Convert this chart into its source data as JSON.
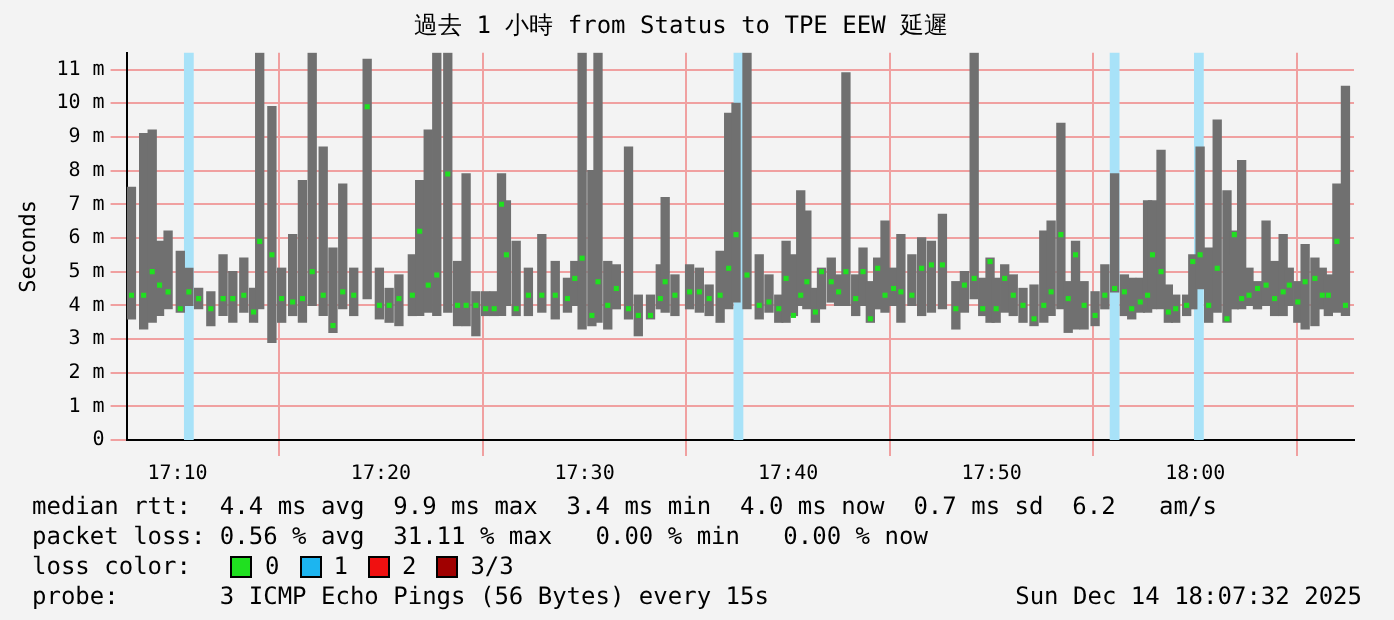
{
  "chart_data": {
    "type": "bar",
    "title": "過去 1 小時 from Status to TPE EEW 延遲",
    "ylabel": "Seconds",
    "legend_title": "loss color:",
    "legend": "bottom",
    "grid": true,
    "xlim": [
      17.125,
      18.13
    ],
    "xticks": [
      {
        "value": 17.1667,
        "label": "17:10"
      },
      {
        "value": 17.3333,
        "label": "17:20"
      },
      {
        "value": 17.5,
        "label": "17:30"
      },
      {
        "value": 17.6667,
        "label": "17:40"
      },
      {
        "value": 17.8333,
        "label": "17:50"
      },
      {
        "value": 18,
        "label": "18:00"
      }
    ],
    "ylim": [
      0,
      11.5
    ],
    "yticks": [
      0,
      {
        "value": 1,
        "label": "1 m"
      },
      {
        "value": 2,
        "label": "2 m"
      },
      {
        "value": 3,
        "label": "3 m"
      },
      {
        "value": 4,
        "label": "4 m"
      },
      {
        "value": 5,
        "label": "5 m"
      },
      {
        "value": 6,
        "label": "6 m"
      },
      {
        "value": 7,
        "label": "7 m"
      },
      {
        "value": 8,
        "label": "8 m"
      },
      {
        "value": 9,
        "label": "9 m"
      },
      {
        "value": 10,
        "label": "10 m"
      },
      {
        "value": 11,
        "label": "11 m"
      }
    ],
    "x": [
      17.129,
      17.139,
      17.146,
      17.152,
      17.159,
      17.169,
      17.176,
      17.184,
      17.194,
      17.204,
      17.212,
      17.221,
      17.229,
      17.234,
      17.244,
      17.252,
      17.261,
      17.269,
      17.277,
      17.286,
      17.294,
      17.302,
      17.311,
      17.322,
      17.332,
      17.34,
      17.348,
      17.359,
      17.365,
      17.372,
      17.379,
      17.388,
      17.396,
      17.403,
      17.411,
      17.419,
      17.426,
      17.432,
      17.436,
      17.444,
      17.454,
      17.465,
      17.476,
      17.486,
      17.492,
      17.498,
      17.506,
      17.511,
      17.519,
      17.526,
      17.536,
      17.544,
      17.554,
      17.562,
      17.566,
      17.574,
      17.586,
      17.594,
      17.602,
      17.611,
      17.618,
      17.624,
      17.633,
      17.643,
      17.651,
      17.659,
      17.665,
      17.671,
      17.677,
      17.682,
      17.689,
      17.694,
      17.702,
      17.708,
      17.714,
      17.722,
      17.728,
      17.734,
      17.74,
      17.746,
      17.753,
      17.759,
      17.768,
      17.776,
      17.784,
      17.793,
      17.804,
      17.811,
      17.819,
      17.826,
      17.832,
      17.837,
      17.844,
      17.851,
      17.859,
      17.868,
      17.876,
      17.882,
      17.89,
      17.896,
      17.902,
      17.909,
      17.918,
      17.926,
      17.934,
      17.942,
      17.948,
      17.955,
      17.961,
      17.965,
      17.972,
      17.978,
      17.984,
      17.993,
      17.998,
      18.004,
      18.011,
      18.018,
      18.026,
      18.032,
      18.038,
      18.044,
      18.051,
      18.058,
      18.065,
      18.072,
      18.077,
      18.084,
      18.09,
      18.098,
      18.104,
      18.109,
      18.116,
      18.123
    ],
    "series": [
      {
        "color": "#707070",
        "base": [
          3.6,
          3.3,
          3.5,
          3.7,
          3.9,
          3.8,
          4.0,
          3.9,
          3.4,
          3.7,
          3.5,
          3.8,
          3.5,
          3.9,
          2.9,
          3.5,
          3.7,
          3.5,
          4.0,
          3.7,
          3.2,
          3.9,
          3.7,
          4.2,
          3.6,
          3.5,
          3.4,
          3.7,
          3.7,
          3.8,
          3.7,
          3.8,
          3.4,
          3.4,
          3.1,
          3.7,
          3.7,
          3.7,
          4.0,
          3.7,
          3.7,
          3.8,
          3.6,
          3.8,
          4.0,
          3.3,
          3.4,
          3.5,
          3.3,
          3.9,
          3.6,
          3.1,
          3.6,
          3.9,
          3.8,
          3.7,
          3.9,
          3.8,
          3.7,
          3.5,
          3.9,
          4.1,
          3.9,
          3.6,
          3.8,
          3.5,
          3.5,
          3.7,
          4.0,
          3.9,
          3.5,
          3.9,
          4.1,
          4.0,
          4.0,
          3.7,
          4.0,
          3.5,
          3.9,
          3.8,
          4.0,
          3.5,
          4.0,
          3.7,
          3.8,
          3.9,
          3.3,
          3.8,
          4.2,
          3.7,
          3.5,
          3.5,
          3.8,
          3.7,
          3.5,
          3.4,
          3.5,
          3.7,
          3.9,
          3.2,
          3.3,
          3.3,
          3.4,
          3.9,
          4.4,
          3.7,
          3.6,
          3.8,
          3.8,
          3.9,
          3.9,
          3.5,
          3.5,
          3.7,
          3.9,
          4.5,
          3.5,
          3.8,
          3.5,
          3.9,
          3.9,
          4.0,
          3.9,
          4.0,
          3.7,
          3.7,
          4.0,
          3.5,
          3.3,
          3.4,
          3.9,
          3.7,
          3.8,
          3.7
        ],
        "values": [
          3.9,
          5.8,
          5.7,
          2.2,
          2.3,
          1.8,
          1.1,
          0.6,
          1.0,
          1.8,
          1.5,
          1.6,
          1.0,
          7.6,
          7.0,
          1.6,
          2.4,
          4.2,
          7.5,
          5.0,
          2.5,
          3.7,
          1.4,
          7.1,
          1.5,
          1.0,
          1.5,
          1.8,
          4.0,
          5.4,
          7.8,
          7.7,
          1.9,
          4.5,
          1.3,
          0.7,
          0.7,
          4.2,
          3.1,
          2.2,
          1.4,
          2.3,
          1.7,
          1.0,
          1.3,
          8.2,
          4.6,
          8.0,
          2.0,
          1.3,
          5.1,
          1.2,
          0.7,
          1.3,
          3.4,
          1.2,
          1.3,
          1.3,
          0.9,
          2.1,
          5.8,
          5.9,
          7.6,
          1.9,
          1.1,
          0.8,
          2.4,
          1.8,
          3.4,
          2.9,
          1.0,
          1.2,
          1.3,
          0.9,
          6.9,
          1.2,
          1.7,
          1.2,
          1.5,
          2.7,
          1.1,
          2.6,
          1.5,
          2.3,
          2.1,
          2.8,
          1.4,
          1.2,
          7.3,
          1.1,
          1.9,
          1.3,
          1.4,
          1.2,
          1.0,
          1.2,
          2.7,
          2.8,
          5.5,
          1.5,
          2.6,
          1.4,
          1.0,
          1.3,
          3.5,
          1.2,
          1.2,
          1.0,
          3.3,
          3.2,
          4.7,
          1.1,
          0.8,
          0.6,
          1.6,
          4.2,
          2.2,
          5.7,
          3.9,
          2.3,
          4.4,
          1.1,
          0.8,
          2.5,
          1.6,
          2.4,
          1.1,
          1.2,
          2.5,
          2.0,
          1.2,
          1.2,
          3.8,
          6.8
        ]
      },
      {
        "type": "scatter",
        "name": "0",
        "color": "#20e020",
        "marker": "square",
        "values": [
          4.3,
          4.3,
          5.0,
          4.6,
          4.4,
          3.9,
          4.4,
          4.2,
          3.9,
          4.2,
          4.2,
          4.3,
          3.8,
          5.9,
          5.5,
          4.2,
          4.1,
          4.2,
          5.0,
          4.3,
          3.4,
          4.4,
          4.3,
          9.9,
          4.0,
          4.0,
          4.2,
          4.3,
          6.2,
          4.6,
          4.9,
          7.9,
          4.0,
          4.0,
          4.0,
          3.9,
          3.9,
          7.0,
          5.5,
          3.9,
          4.3,
          4.3,
          4.3,
          4.2,
          4.8,
          5.4,
          3.7,
          4.7,
          4.0,
          4.5,
          3.9,
          3.7,
          3.7,
          4.2,
          4.7,
          4.3,
          4.4,
          4.4,
          4.2,
          4.3,
          5.1,
          6.1,
          4.9,
          4.0,
          4.1,
          3.9,
          4.8,
          3.7,
          4.3,
          4.7,
          3.8,
          5.0,
          4.7,
          4.4,
          5.0,
          4.2,
          5.0,
          3.6,
          5.1,
          4.3,
          4.5,
          4.4,
          4.3,
          5.1,
          5.2,
          5.2,
          3.9,
          4.6,
          4.8,
          3.9,
          5.3,
          3.9,
          4.8,
          4.3,
          4.0,
          3.6,
          4.0,
          4.4,
          6.1,
          4.2,
          5.5,
          4.0,
          3.7,
          4.3,
          4.5,
          4.4,
          3.9,
          4.1,
          4.3,
          5.5,
          5.0,
          3.8,
          3.9,
          4.0,
          5.3,
          5.5,
          4.0,
          5.1,
          3.6,
          6.1,
          4.2,
          4.3,
          4.5,
          4.6,
          4.2,
          4.4,
          4.6,
          4.1,
          4.7,
          4.8,
          4.3,
          4.3,
          5.9,
          4.0
        ]
      },
      {
        "type": "scatter",
        "name": "1",
        "color": "#1cb5f0",
        "marker": "square",
        "values": [
          null,
          null,
          null,
          null,
          null,
          null,
          null,
          null,
          null,
          null,
          null,
          null,
          null,
          null,
          null,
          null,
          null,
          null,
          null,
          null,
          null,
          null,
          null,
          null,
          null,
          null,
          null,
          null,
          null,
          null,
          null,
          null,
          null,
          null,
          null,
          null,
          null,
          null,
          null,
          null,
          null,
          null,
          null,
          null,
          null,
          null,
          null,
          null,
          null,
          null,
          null,
          null,
          null,
          null,
          null,
          null,
          null,
          null,
          null,
          null,
          null,
          null,
          null,
          null,
          null,
          null,
          null,
          null,
          null,
          null,
          null,
          null,
          null,
          null,
          null,
          null,
          null,
          null,
          null,
          null,
          null,
          null,
          null,
          null,
          null,
          null,
          null,
          null,
          null,
          null,
          null,
          null,
          null,
          null,
          null,
          null,
          null,
          null,
          null,
          null,
          null,
          null,
          null,
          null,
          null,
          null,
          null,
          null,
          null,
          null,
          null,
          null,
          null,
          null,
          null,
          null,
          null,
          null,
          null,
          null,
          null,
          null,
          null,
          null,
          null,
          null,
          null,
          null,
          null,
          null,
          null,
          null,
          null,
          null
        ]
      },
      {
        "type": "scatter",
        "name": "2",
        "color": "#f01010",
        "marker": "square",
        "values": [
          null,
          null,
          null,
          null,
          null,
          null,
          null,
          null,
          null,
          null,
          null,
          null,
          null,
          null,
          null,
          null,
          null,
          null,
          null,
          null,
          null,
          null,
          null,
          null,
          null,
          null,
          null,
          null,
          null,
          null,
          null,
          null,
          null,
          null,
          null,
          null,
          null,
          null,
          null,
          null,
          null,
          null,
          null,
          null,
          null,
          null,
          null,
          null,
          null,
          null,
          null,
          null,
          null,
          null,
          null,
          null,
          null,
          null,
          null,
          null,
          null,
          null,
          null,
          null,
          null,
          null,
          null,
          null,
          null,
          null,
          null,
          null,
          null,
          null,
          null,
          null,
          null,
          null,
          null,
          null,
          null,
          null,
          null,
          null,
          null,
          null,
          null,
          null,
          null,
          null,
          null,
          null,
          null,
          null,
          null,
          null,
          null,
          null,
          null,
          null,
          null,
          null,
          null,
          null,
          null,
          null,
          null,
          null,
          null,
          null,
          null,
          null,
          null,
          null,
          null,
          null,
          null,
          null,
          null,
          null,
          null,
          null,
          null,
          null,
          null,
          null,
          null,
          null,
          null,
          null,
          null,
          null,
          null,
          null
        ]
      },
      {
        "type": "scatter",
        "name": "3/3",
        "color": "#a00000",
        "marker": "square",
        "values": [
          null,
          null,
          null,
          null,
          null,
          null,
          null,
          null,
          null,
          null,
          null,
          null,
          null,
          null,
          null,
          null,
          null,
          null,
          null,
          null,
          null,
          null,
          null,
          null,
          null,
          null,
          null,
          null,
          null,
          null,
          null,
          null,
          null,
          null,
          null,
          null,
          null,
          null,
          null,
          null,
          null,
          null,
          null,
          null,
          null,
          null,
          null,
          null,
          null,
          null,
          null,
          null,
          null,
          null,
          null,
          null,
          null,
          null,
          null,
          null,
          null,
          null,
          null,
          null,
          null,
          null,
          null,
          null,
          null,
          null,
          null,
          null,
          null,
          null,
          null,
          null,
          null,
          null,
          null,
          null,
          null,
          null,
          null,
          null,
          null,
          null,
          null,
          null,
          null,
          null,
          null,
          null,
          null,
          null,
          null,
          null,
          null,
          null,
          null,
          null,
          null,
          null,
          null,
          null,
          null,
          null,
          null,
          null,
          null,
          null,
          null,
          null,
          null,
          null,
          null,
          null,
          null,
          null,
          null,
          null,
          null,
          null,
          null,
          null,
          null,
          null,
          null,
          null,
          null,
          null,
          null,
          null,
          null,
          null
        ]
      }
    ],
    "bands": [
      {
        "axis": "x",
        "from": 17.172,
        "to": 17.18,
        "color": "#a8e2f8"
      },
      {
        "axis": "x",
        "from": 17.622,
        "to": 17.63,
        "color": "#a8e2f8"
      },
      {
        "axis": "x",
        "from": 17.93,
        "to": 17.938,
        "color": "#a8e2f8"
      },
      {
        "axis": "x",
        "from": 17.999,
        "to": 18.007,
        "color": "#a8e2f8"
      }
    ],
    "annotations": [
      "median rtt:  4.4 ms avg  9.9 ms max  3.4 ms min  4.0 ms now  0.7 ms sd  6.2   am/s",
      "packet loss: 0.56 % avg  31.11 % max   0.00 % min   0.00 % now",
      "probe:       3 ICMP Echo Pings (56 Bytes) every 15s",
      "Sun Dec 14 18:07:32 2025"
    ]
  }
}
